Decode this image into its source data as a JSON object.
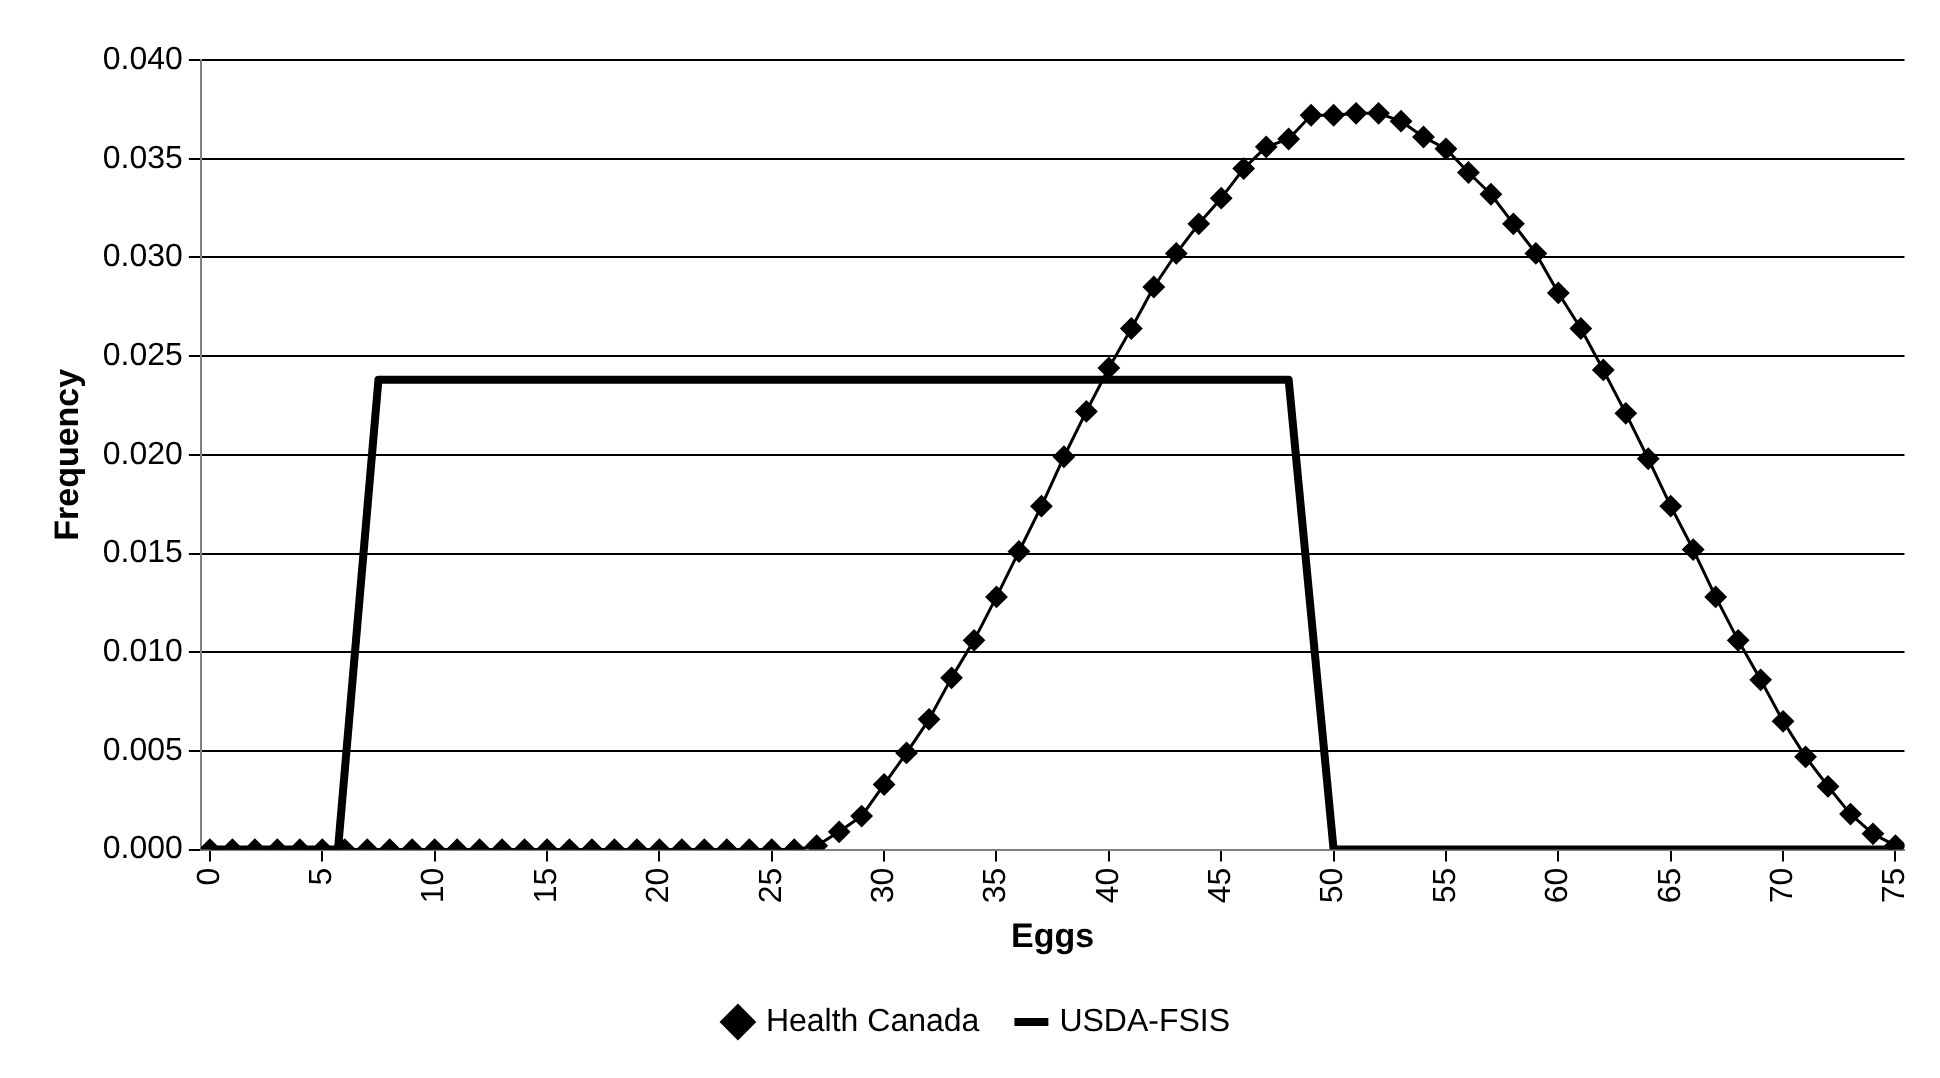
{
  "chart_data": {
    "type": "line",
    "xlabel": "Eggs",
    "ylabel": "Frequency",
    "xlim": [
      -0.4,
      75.4
    ],
    "xticks": [
      0,
      5,
      10,
      15,
      20,
      25,
      30,
      35,
      40,
      45,
      50,
      55,
      60,
      65,
      70,
      75
    ],
    "ylim": [
      0,
      0.04
    ],
    "yticks": [
      {
        "value": 0,
        "label": "0.000"
      },
      {
        "value": 0.005,
        "label": "0.005"
      },
      {
        "value": 0.01,
        "label": "0.010"
      },
      {
        "value": 0.015,
        "label": "0.015"
      },
      {
        "value": 0.02,
        "label": "0.020"
      },
      {
        "value": 0.025,
        "label": "0.025"
      },
      {
        "value": 0.03,
        "label": "0.030"
      },
      {
        "value": 0.035,
        "label": "0.035"
      },
      {
        "value": 0.04,
        "label": "0.040"
      }
    ],
    "grid": "y",
    "legend": "bottom",
    "series": [
      {
        "name": "Health Canada",
        "color": "#000000",
        "marker": "diamond",
        "x": [
          0,
          1,
          2,
          3,
          4,
          5,
          6,
          7,
          8,
          9,
          10,
          11,
          12,
          13,
          14,
          15,
          16,
          17,
          18,
          19,
          20,
          21,
          22,
          23,
          24,
          25,
          26,
          27,
          28,
          29,
          30,
          31,
          32,
          33,
          34,
          35,
          36,
          37,
          38,
          39,
          40,
          41,
          42,
          43,
          44,
          45,
          46,
          47,
          48,
          49,
          50,
          51,
          52,
          53,
          54,
          55,
          56,
          57,
          58,
          59,
          60,
          61,
          62,
          63,
          64,
          65,
          66,
          67,
          68,
          69,
          70,
          71,
          72,
          73,
          74,
          75
        ],
        "values": [
          0,
          0,
          0,
          0,
          0,
          0,
          0,
          0,
          0,
          0,
          0,
          0,
          0,
          0,
          0,
          0,
          0,
          0,
          0,
          0,
          0,
          0,
          0,
          0,
          0,
          0,
          0,
          0.0002,
          0.0009,
          0.0017,
          0.0033,
          0.0049,
          0.0066,
          0.0087,
          0.0106,
          0.0128,
          0.0151,
          0.0174,
          0.0199,
          0.0222,
          0.0244,
          0.0264,
          0.0285,
          0.0302,
          0.0317,
          0.033,
          0.0345,
          0.0356,
          0.036,
          0.0372,
          0.0372,
          0.0373,
          0.0373,
          0.0369,
          0.0361,
          0.0355,
          0.0343,
          0.0332,
          0.0317,
          0.0302,
          0.0282,
          0.0264,
          0.0243,
          0.0221,
          0.0198,
          0.0174,
          0.0152,
          0.0128,
          0.0106,
          0.0086,
          0.0065,
          0.0047,
          0.0032,
          0.0018,
          0.0008,
          0.0002
        ]
      },
      {
        "name": "USDA-FSIS",
        "color": "#000000",
        "marker": "none",
        "x": [
          0,
          5.7,
          7.5,
          48,
          50,
          75
        ],
        "values": [
          0,
          0,
          0.0238,
          0.0238,
          0,
          0
        ]
      }
    ]
  }
}
